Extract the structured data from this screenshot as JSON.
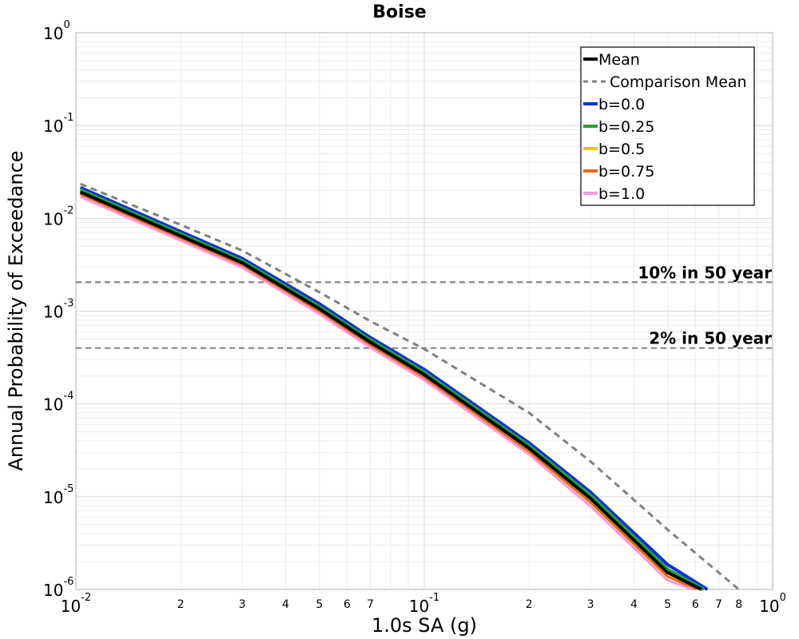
{
  "chart_data": {
    "type": "line",
    "title": "Boise",
    "xlabel": "1.0s SA (g)",
    "ylabel": "Annual Probability of Exceedance",
    "xscale": "log",
    "yscale": "log",
    "xlim": [
      0.01,
      1.0
    ],
    "ylim": [
      1e-06,
      1.0
    ],
    "grid": true,
    "legend_position": "top-right",
    "x_major_ticks": [
      {
        "value": 0.01,
        "base": "10",
        "exp": "-2"
      },
      {
        "value": 0.1,
        "base": "10",
        "exp": "-1"
      },
      {
        "value": 1.0,
        "base": "10",
        "exp": "0"
      }
    ],
    "y_major_ticks": [
      {
        "value": 1.0,
        "base": "10",
        "exp": "0"
      },
      {
        "value": 0.1,
        "base": "10",
        "exp": "-1"
      },
      {
        "value": 0.01,
        "base": "10",
        "exp": "-2"
      },
      {
        "value": 0.001,
        "base": "10",
        "exp": "-3"
      },
      {
        "value": 0.0001,
        "base": "10",
        "exp": "-4"
      },
      {
        "value": 1e-05,
        "base": "10",
        "exp": "-5"
      },
      {
        "value": 1e-06,
        "base": "10",
        "exp": "-6"
      }
    ],
    "x_minor_labels": [
      {
        "value": 0.02,
        "label": "2"
      },
      {
        "value": 0.03,
        "label": "3"
      },
      {
        "value": 0.04,
        "label": "4"
      },
      {
        "value": 0.05,
        "label": "5"
      },
      {
        "value": 0.06,
        "label": "6"
      },
      {
        "value": 0.07,
        "label": "7"
      },
      {
        "value": 0.2,
        "label": "2"
      },
      {
        "value": 0.3,
        "label": "3"
      },
      {
        "value": 0.4,
        "label": "4"
      },
      {
        "value": 0.5,
        "label": "5"
      },
      {
        "value": 0.6,
        "label": "6"
      },
      {
        "value": 0.7,
        "label": "7"
      },
      {
        "value": 0.8,
        "label": "8"
      }
    ],
    "reference_lines": [
      {
        "y": 0.00205,
        "label": "10% in 50 year",
        "color": "#808080"
      },
      {
        "y": 0.0004,
        "label": "2% in 50 year",
        "color": "#808080"
      }
    ],
    "series": [
      {
        "name": "b=0.0",
        "color": "#0033dd",
        "width": 4,
        "dash": "",
        "x": [
          0.0103,
          0.02,
          0.03,
          0.05,
          0.07,
          0.1,
          0.2,
          0.3,
          0.5,
          0.65
        ],
        "y": [
          0.0215,
          0.0072,
          0.0037,
          0.0012,
          0.00052,
          0.000235,
          3.8e-05,
          1.12e-05,
          1.85e-06,
          1e-06
        ]
      },
      {
        "name": "b=0.25",
        "color": "#2ca02c",
        "width": 4,
        "dash": "",
        "x": [
          0.0103,
          0.02,
          0.03,
          0.05,
          0.07,
          0.1,
          0.2,
          0.3,
          0.5,
          0.635
        ],
        "y": [
          0.0203,
          0.0068,
          0.0035,
          0.00112,
          0.00049,
          0.00022,
          3.55e-05,
          1.04e-05,
          1.65e-06,
          1e-06
        ]
      },
      {
        "name": "b=0.5",
        "color": "#f0c800",
        "width": 3,
        "dash": "",
        "x": [
          0.0103,
          0.02,
          0.03,
          0.05,
          0.07,
          0.1,
          0.2,
          0.3,
          0.5,
          0.62
        ],
        "y": [
          0.0192,
          0.00645,
          0.0033,
          0.00105,
          0.00046,
          0.000205,
          3.3e-05,
          9.5e-06,
          1.5e-06,
          1e-06
        ]
      },
      {
        "name": "b=0.75",
        "color": "#ee6600",
        "width": 3,
        "dash": "",
        "x": [
          0.0103,
          0.02,
          0.03,
          0.05,
          0.07,
          0.1,
          0.2,
          0.3,
          0.5,
          0.605
        ],
        "y": [
          0.0182,
          0.0061,
          0.00312,
          0.00099,
          0.000432,
          0.000193,
          3.07e-05,
          8.7e-06,
          1.38e-06,
          1e-06
        ]
      },
      {
        "name": "b=1.0",
        "color": "#f59ae0",
        "width": 3,
        "dash": "",
        "x": [
          0.0103,
          0.02,
          0.03,
          0.05,
          0.07,
          0.1,
          0.2,
          0.3,
          0.5,
          0.59
        ],
        "y": [
          0.017,
          0.00575,
          0.00295,
          0.00093,
          0.000405,
          0.00018,
          2.85e-05,
          7.9e-06,
          1.25e-06,
          1e-06
        ]
      },
      {
        "name": "Mean",
        "color": "#000000",
        "width": 4,
        "dash": "",
        "x": [
          0.0103,
          0.02,
          0.03,
          0.05,
          0.07,
          0.1,
          0.2,
          0.3,
          0.5,
          0.625
        ],
        "y": [
          0.0192,
          0.00645,
          0.00332,
          0.00106,
          0.000462,
          0.000207,
          3.33e-05,
          9.6e-06,
          1.52e-06,
          1e-06
        ]
      },
      {
        "name": "Comparison Mean",
        "color": "#808080",
        "width": 3,
        "dash": "8,6",
        "x": [
          0.0103,
          0.02,
          0.03,
          0.05,
          0.07,
          0.1,
          0.2,
          0.3,
          0.5,
          0.8
        ],
        "y": [
          0.0235,
          0.0085,
          0.0045,
          0.0016,
          0.00078,
          0.00039,
          8e-05,
          2.4e-05,
          4.4e-06,
          1e-06
        ]
      }
    ],
    "legend": [
      {
        "label": "Mean",
        "color": "#000000",
        "width": 4,
        "dash": ""
      },
      {
        "label": "Comparison Mean",
        "color": "#808080",
        "width": 3,
        "dash": "8,6"
      },
      {
        "label": "b=0.0",
        "color": "#0033dd",
        "width": 4,
        "dash": ""
      },
      {
        "label": "b=0.25",
        "color": "#2ca02c",
        "width": 4,
        "dash": ""
      },
      {
        "label": "b=0.5",
        "color": "#f0c800",
        "width": 4,
        "dash": ""
      },
      {
        "label": "b=0.75",
        "color": "#ee6600",
        "width": 4,
        "dash": ""
      },
      {
        "label": "b=1.0",
        "color": "#f59ae0",
        "width": 4,
        "dash": ""
      }
    ]
  }
}
